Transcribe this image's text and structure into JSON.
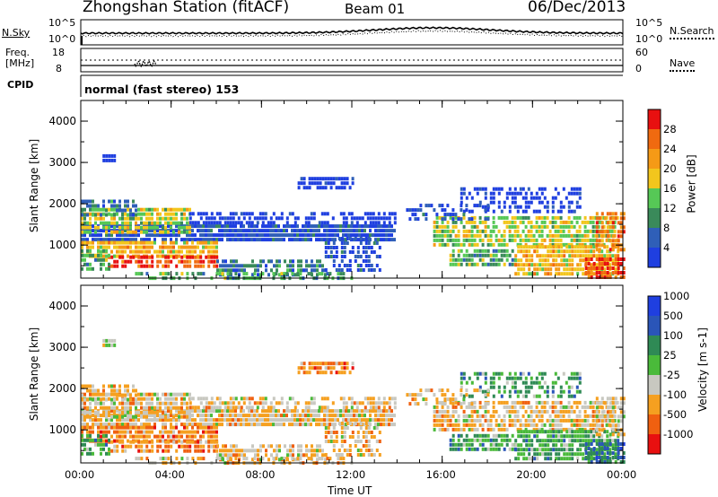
{
  "header": {
    "station": "Zhongshan Station (fitACF)",
    "beam": "Beam 01",
    "date": "06/Dec/2013"
  },
  "noise_panel": {
    "left_label": "N.Sky",
    "right_label": "N.Search",
    "left_ticks": [
      "10^5",
      "10^0"
    ],
    "right_ticks": [
      "10^5",
      "10^0"
    ]
  },
  "freq_panel": {
    "left_label_1": "Freq.",
    "left_label_2": "[MHz]",
    "left_ticks": [
      "18",
      "8"
    ],
    "right_label": "Nave",
    "right_ticks": [
      "60",
      "0"
    ]
  },
  "cpid": {
    "label": "CPID",
    "value": "normal (fast stereo) 153"
  },
  "colors": {
    "power": [
      "#1f3fe0",
      "#2f5fb8",
      "#3a8a5a",
      "#56c856",
      "#f2c61d",
      "#f59a16",
      "#f06a10",
      "#e81010"
    ],
    "velocity": [
      "#e81010",
      "#f06010",
      "#f5a020",
      "#c8c8c0",
      "#4aba3a",
      "#2f8a55",
      "#2a55b8",
      "#1f3fe0"
    ]
  },
  "chart_data": [
    {
      "type": "heatmap",
      "title": "",
      "xlabel": "Time UT",
      "ylabel": "Slant Range [km]",
      "x_ticks": [
        "00:00",
        "04:00",
        "08:00",
        "12:00",
        "16:00",
        "20:00",
        "00:00"
      ],
      "y_ticks": [
        "1000",
        "2000",
        "3000",
        "4000"
      ],
      "ylim": [
        200,
        4500
      ],
      "colorbar": {
        "label": "Power [dB]",
        "ticks": [
          "4",
          "8",
          "12",
          "16",
          "20",
          "24",
          "28"
        ]
      }
    },
    {
      "type": "heatmap",
      "title": "",
      "xlabel": "Time UT",
      "ylabel": "Slant Range [km]",
      "x_ticks": [
        "00:00",
        "04:00",
        "08:00",
        "12:00",
        "16:00",
        "20:00",
        "00:00"
      ],
      "y_ticks": [
        "1000",
        "2000",
        "3000",
        "4000"
      ],
      "ylim": [
        200,
        4500
      ],
      "colorbar": {
        "label": "Velocity [m s-1]",
        "ticks": [
          "-1000",
          "-500",
          "-100",
          "-25",
          "25",
          "100",
          "500",
          "1000"
        ]
      }
    }
  ],
  "xaxis_label": "Time UT"
}
